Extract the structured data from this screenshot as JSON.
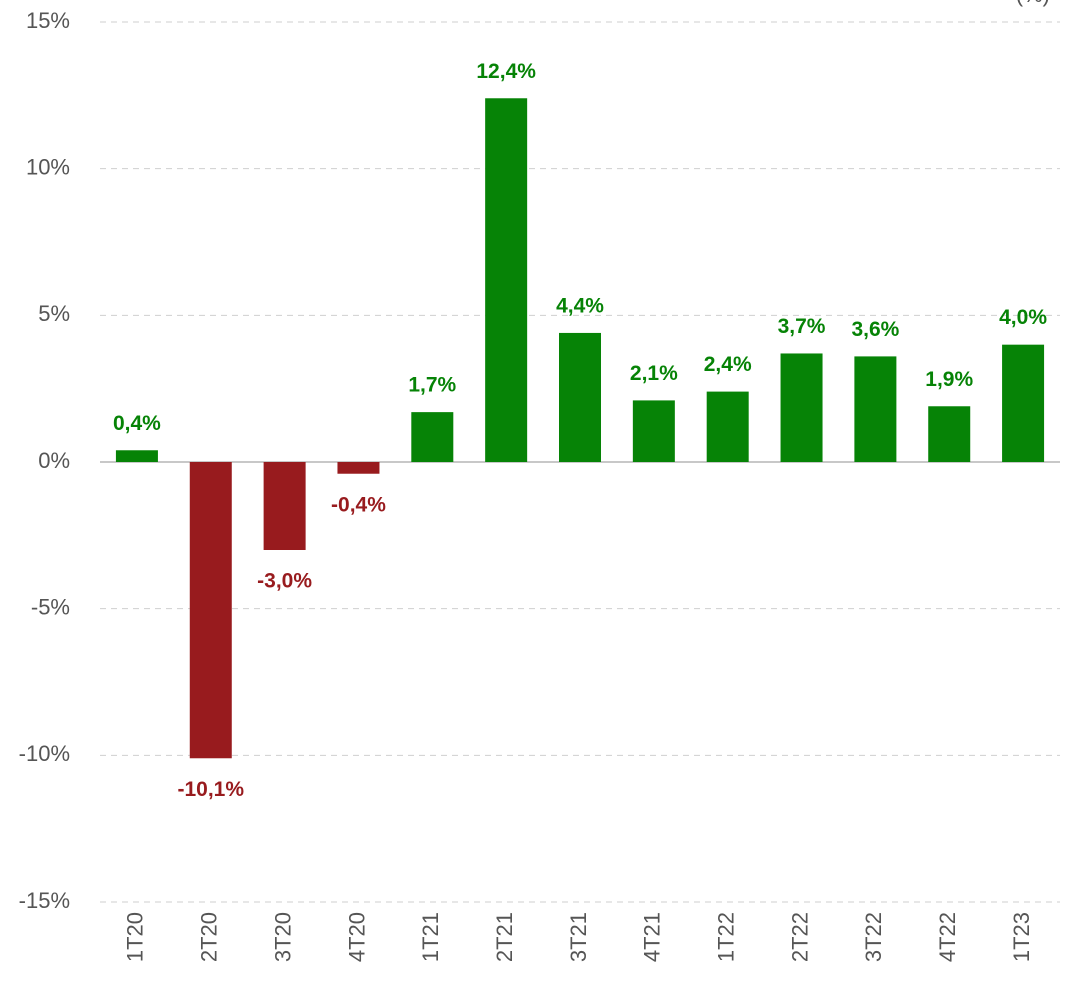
{
  "chart_data": {
    "type": "bar",
    "unit_label": "(%)",
    "categories": [
      "1T20",
      "2T20",
      "3T20",
      "4T20",
      "1T21",
      "2T21",
      "3T21",
      "4T21",
      "1T22",
      "2T22",
      "3T22",
      "4T22",
      "1T23"
    ],
    "values": [
      0.4,
      -10.1,
      -3.0,
      -0.4,
      1.7,
      12.4,
      4.4,
      2.1,
      2.4,
      3.7,
      3.6,
      1.9,
      4.0
    ],
    "value_labels": [
      "0,4%",
      "-10,1%",
      "-3,0%",
      "-0,4%",
      "1,7%",
      "12,4%",
      "4,4%",
      "2,1%",
      "2,4%",
      "3,7%",
      "3,6%",
      "1,9%",
      "4,0%"
    ],
    "positive_color": "#068306",
    "negative_color": "#981b1e",
    "ylim": [
      -15,
      15
    ],
    "yticks": [
      {
        "value": -15,
        "label": "-15%"
      },
      {
        "value": -10,
        "label": "-10%"
      },
      {
        "value": -5,
        "label": "-5%"
      },
      {
        "value": 0,
        "label": "0%"
      },
      {
        "value": 5,
        "label": "5%"
      },
      {
        "value": 10,
        "label": "10%"
      },
      {
        "value": 15,
        "label": "15%"
      }
    ],
    "grid": true
  }
}
